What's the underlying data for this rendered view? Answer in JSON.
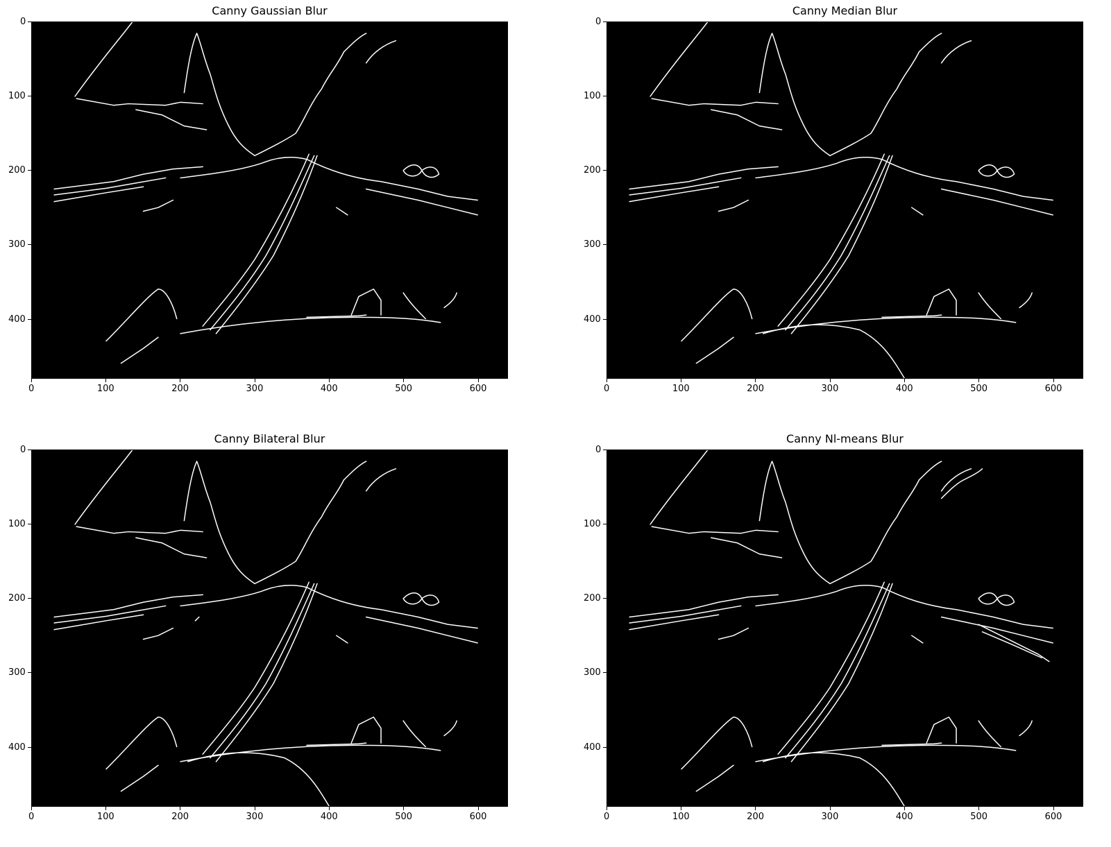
{
  "figure": {
    "background": "#ffffff",
    "image_background": "#000000",
    "edge_color": "#ffffff",
    "panels": [
      {
        "id": "gaussian",
        "title": "Canny Gaussian Blur",
        "x_ticks": [
          "0",
          "100",
          "200",
          "300",
          "400",
          "500",
          "600"
        ],
        "y_ticks": [
          "0",
          "100",
          "200",
          "300",
          "400"
        ],
        "x_range": [
          0,
          640
        ],
        "y_range": [
          0,
          480
        ]
      },
      {
        "id": "median",
        "title": "Canny Median Blur",
        "x_ticks": [
          "0",
          "100",
          "200",
          "300",
          "400",
          "500",
          "600"
        ],
        "y_ticks": [
          "0",
          "100",
          "200",
          "300",
          "400"
        ],
        "x_range": [
          0,
          640
        ],
        "y_range": [
          0,
          480
        ]
      },
      {
        "id": "bilateral",
        "title": "Canny Bilateral Blur",
        "x_ticks": [
          "0",
          "100",
          "200",
          "300",
          "400",
          "500",
          "600"
        ],
        "y_ticks": [
          "0",
          "100",
          "200",
          "300",
          "400"
        ],
        "x_range": [
          0,
          640
        ],
        "y_range": [
          0,
          480
        ]
      },
      {
        "id": "nlmeans",
        "title": "Canny Nl-means Blur",
        "x_ticks": [
          "0",
          "100",
          "200",
          "300",
          "400",
          "500",
          "600"
        ],
        "y_ticks": [
          "0",
          "100",
          "200",
          "300",
          "400"
        ],
        "x_range": [
          0,
          640
        ],
        "y_range": [
          0,
          480
        ]
      }
    ]
  }
}
